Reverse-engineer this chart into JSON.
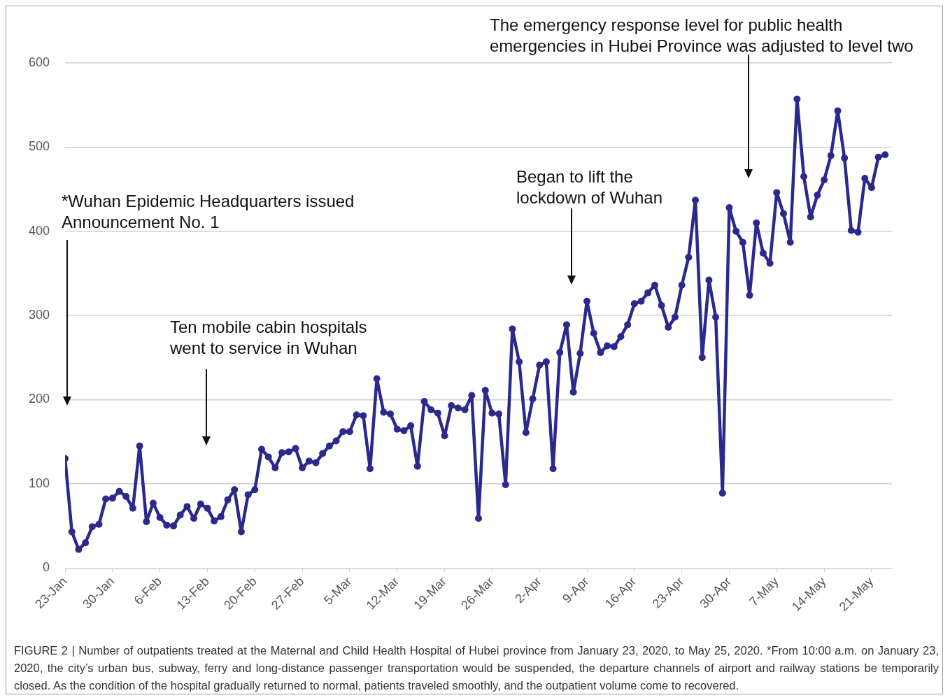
{
  "chart_data": {
    "type": "line",
    "x": [
      "2020-01-23",
      "2020-01-24",
      "2020-01-25",
      "2020-01-26",
      "2020-01-27",
      "2020-01-28",
      "2020-01-29",
      "2020-01-30",
      "2020-01-31",
      "2020-02-01",
      "2020-02-02",
      "2020-02-03",
      "2020-02-04",
      "2020-02-05",
      "2020-02-06",
      "2020-02-07",
      "2020-02-08",
      "2020-02-09",
      "2020-02-10",
      "2020-02-11",
      "2020-02-12",
      "2020-02-13",
      "2020-02-14",
      "2020-02-15",
      "2020-02-16",
      "2020-02-17",
      "2020-02-18",
      "2020-02-19",
      "2020-02-20",
      "2020-02-21",
      "2020-02-22",
      "2020-02-23",
      "2020-02-24",
      "2020-02-25",
      "2020-02-26",
      "2020-02-27",
      "2020-02-28",
      "2020-02-29",
      "2020-03-01",
      "2020-03-02",
      "2020-03-03",
      "2020-03-04",
      "2020-03-05",
      "2020-03-06",
      "2020-03-07",
      "2020-03-08",
      "2020-03-09",
      "2020-03-10",
      "2020-03-11",
      "2020-03-12",
      "2020-03-13",
      "2020-03-14",
      "2020-03-15",
      "2020-03-16",
      "2020-03-17",
      "2020-03-18",
      "2020-03-19",
      "2020-03-20",
      "2020-03-21",
      "2020-03-22",
      "2020-03-23",
      "2020-03-24",
      "2020-03-25",
      "2020-03-26",
      "2020-03-27",
      "2020-03-28",
      "2020-03-29",
      "2020-03-30",
      "2020-03-31",
      "2020-04-01",
      "2020-04-02",
      "2020-04-03",
      "2020-04-04",
      "2020-04-05",
      "2020-04-06",
      "2020-04-07",
      "2020-04-08",
      "2020-04-09",
      "2020-04-10",
      "2020-04-11",
      "2020-04-12",
      "2020-04-13",
      "2020-04-14",
      "2020-04-15",
      "2020-04-16",
      "2020-04-17",
      "2020-04-18",
      "2020-04-19",
      "2020-04-20",
      "2020-04-21",
      "2020-04-22",
      "2020-04-23",
      "2020-04-24",
      "2020-04-25",
      "2020-04-26",
      "2020-04-27",
      "2020-04-28",
      "2020-04-29",
      "2020-04-30",
      "2020-05-01",
      "2020-05-02",
      "2020-05-03",
      "2020-05-04",
      "2020-05-05",
      "2020-05-06",
      "2020-05-07",
      "2020-05-08",
      "2020-05-09",
      "2020-05-10",
      "2020-05-11",
      "2020-05-12",
      "2020-05-13",
      "2020-05-14",
      "2020-05-15",
      "2020-05-16",
      "2020-05-17",
      "2020-05-18",
      "2020-05-19",
      "2020-05-20",
      "2020-05-21",
      "2020-05-22",
      "2020-05-23"
    ],
    "series": [
      {
        "color": "#2b2a8c",
        "values": [
          130,
          43,
          22,
          30,
          49,
          52,
          82,
          83,
          91,
          85,
          71,
          145,
          55,
          77,
          60,
          51,
          50,
          63,
          73,
          59,
          76,
          71,
          56,
          61,
          81,
          93,
          43,
          87,
          93,
          141,
          132,
          119,
          137,
          138,
          142,
          119,
          127,
          125,
          136,
          145,
          151,
          162,
          162,
          182,
          181,
          118,
          225,
          185,
          183,
          165,
          163,
          169,
          121,
          198,
          188,
          184,
          157,
          193,
          190,
          188,
          205,
          59,
          211,
          184,
          183,
          99,
          284,
          245,
          161,
          201,
          241,
          245,
          118,
          256,
          289,
          209,
          255,
          317,
          279,
          256,
          264,
          263,
          275,
          289,
          314,
          317,
          327,
          336,
          312,
          286,
          298,
          336,
          369,
          437,
          250,
          342,
          298,
          89,
          428,
          400,
          387,
          324,
          410,
          374,
          362,
          446,
          421,
          387,
          557,
          465,
          417,
          443,
          461,
          490,
          543,
          487,
          401,
          399,
          463,
          452,
          488,
          491
        ]
      }
    ],
    "xlim": [
      "2020-01-23",
      "2020-05-24"
    ],
    "xticks": [
      {
        "value": "2020-01-23",
        "label": "23-Jan"
      },
      {
        "value": "2020-01-30",
        "label": "30-Jan"
      },
      {
        "value": "2020-02-06",
        "label": "6-Feb"
      },
      {
        "value": "2020-02-13",
        "label": "13-Feb"
      },
      {
        "value": "2020-02-20",
        "label": "20-Feb"
      },
      {
        "value": "2020-02-27",
        "label": "27-Feb"
      },
      {
        "value": "2020-03-05",
        "label": "5-Mar"
      },
      {
        "value": "2020-03-12",
        "label": "12-Mar"
      },
      {
        "value": "2020-03-19",
        "label": "19-Mar"
      },
      {
        "value": "2020-03-26",
        "label": "26-Mar"
      },
      {
        "value": "2020-04-02",
        "label": "2-Apr"
      },
      {
        "value": "2020-04-09",
        "label": "9-Apr"
      },
      {
        "value": "2020-04-16",
        "label": "16-Apr"
      },
      {
        "value": "2020-04-23",
        "label": "23-Apr"
      },
      {
        "value": "2020-04-30",
        "label": "30-Apr"
      },
      {
        "value": "2020-05-07",
        "label": "7-May"
      },
      {
        "value": "2020-05-14",
        "label": "14-May"
      },
      {
        "value": "2020-05-21",
        "label": "21-May"
      }
    ],
    "ylim": [
      0,
      600
    ],
    "yticks": [
      0,
      100,
      200,
      300,
      400,
      500,
      600
    ],
    "grid": "y",
    "marker": "circle",
    "line_style": "solid",
    "annotations": [
      "*Wuhan Epidemic Headquarters issued Announcement No. 1",
      "Ten mobile cabin hospitals went to service in Wuhan",
      "Began to lift the lockdown of  Wuhan",
      "The emergency response level for public health emergencies in Hubei Province was adjusted to level two",
      "FIGURE 2 | Number of outpatients treated at the Maternal and Child Health Hospital of Hubei province from January 23, 2020, to May 25, 2020. *From 10:00 a.m. on January 23, 2020, the city’s urban bus, subway, ferry and long-distance passenger transportation would be suspended, the departure channels of airport and railway stations be temporarily closed. As the condition of the hospital gradually returned to normal, patients traveled smoothly, and the outpatient volume come to recovered."
    ]
  }
}
